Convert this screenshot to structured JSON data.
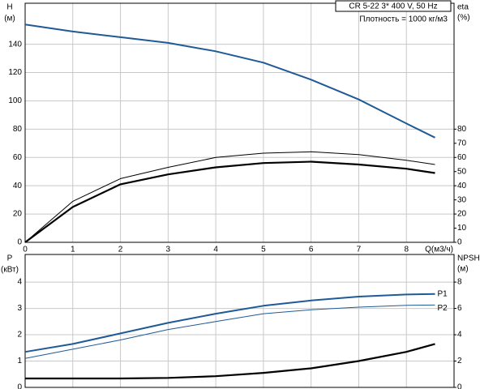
{
  "chart_data": [
    {
      "type": "line",
      "title": "CR 5-22   3* 400 V, 50 Hz",
      "subtitle": "Плотность = 1000 кг/м3",
      "x": [
        0,
        1,
        2,
        3,
        4,
        5,
        6,
        7,
        8,
        8.6
      ],
      "xlim": [
        0,
        9
      ],
      "xticks": [
        0,
        1,
        2,
        3,
        4,
        5,
        6,
        7,
        8
      ],
      "xlabel": "Q(м3/ч)",
      "ylim": [
        0,
        169
      ],
      "yticks": [
        0,
        20,
        40,
        60,
        80,
        100,
        120,
        140
      ],
      "ylabel": [
        "H",
        "(м)"
      ],
      "y2lim": [
        0,
        169
      ],
      "y2ticks": [
        0,
        10,
        20,
        30,
        40,
        50,
        60,
        70,
        80
      ],
      "y2label": [
        "eta",
        "(%)"
      ],
      "grid": true,
      "series": [
        {
          "color": "#1f5a96",
          "width": 2,
          "values": [
            154,
            149,
            145,
            141,
            135,
            127,
            115,
            101,
            84,
            74
          ]
        },
        {
          "color": "#000000",
          "width": 1,
          "axis": "y2",
          "values": [
            0,
            29,
            45,
            53,
            60,
            63,
            64,
            62,
            58,
            55
          ]
        },
        {
          "color": "#000000",
          "width": 2.2,
          "axis": "y2",
          "values": [
            0,
            25,
            41,
            48,
            53,
            56,
            57,
            55,
            52,
            49
          ]
        }
      ]
    },
    {
      "type": "line",
      "x": [
        0,
        1,
        2,
        3,
        4,
        5,
        6,
        7,
        8,
        8.6
      ],
      "xlim": [
        0,
        9
      ],
      "xticks": [
        0,
        1,
        2,
        3,
        4,
        5,
        6,
        7,
        8
      ],
      "x_tick_labels": false,
      "ylim": [
        0,
        5.05
      ],
      "yticks": [
        0,
        1,
        2,
        3,
        4
      ],
      "ylabel": [
        "P",
        "(кВт)"
      ],
      "y2lim": [
        0,
        10.1
      ],
      "y2ticks": [
        0,
        2,
        4,
        6,
        8
      ],
      "y2label": [
        "NPSH",
        "(м)"
      ],
      "grid": true,
      "series": [
        {
          "name": "P1",
          "color": "#1f5a96",
          "width": 2,
          "values": [
            1.35,
            1.65,
            2.05,
            2.45,
            2.8,
            3.1,
            3.3,
            3.45,
            3.53,
            3.55
          ]
        },
        {
          "name": "P2",
          "color": "#1f5a96",
          "width": 1,
          "values": [
            1.1,
            1.45,
            1.8,
            2.2,
            2.5,
            2.8,
            2.95,
            3.05,
            3.12,
            3.13
          ]
        },
        {
          "color": "#000000",
          "width": 2.2,
          "axis": "y2",
          "values": [
            0.68,
            0.68,
            0.68,
            0.72,
            0.85,
            1.1,
            1.45,
            2.0,
            2.7,
            3.3
          ]
        }
      ]
    }
  ]
}
